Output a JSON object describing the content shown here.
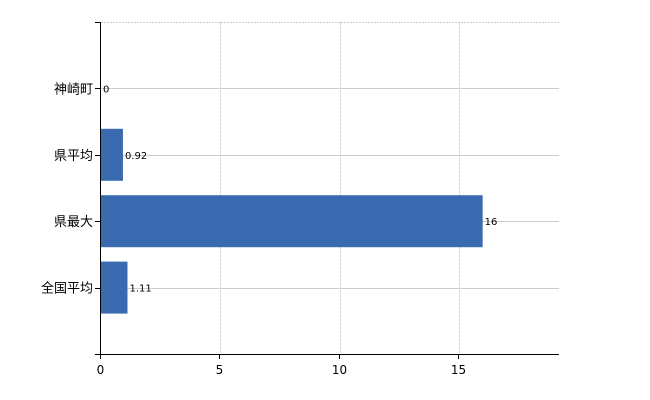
{
  "chart_data": {
    "type": "bar",
    "orientation": "horizontal",
    "categories": [
      "神崎町",
      "県平均",
      "県最大",
      "全国平均"
    ],
    "values": [
      0,
      0.92,
      16,
      1.11
    ],
    "data_labels": [
      "0",
      "0.92",
      "16",
      "1.11"
    ],
    "title": "",
    "xlabel": "",
    "ylabel": "",
    "xlim": [
      0,
      19.2
    ],
    "xticks": [
      "0",
      "5",
      "10",
      "15"
    ],
    "grid": true,
    "bar_color": "#3A6BB0",
    "legend": "none"
  }
}
